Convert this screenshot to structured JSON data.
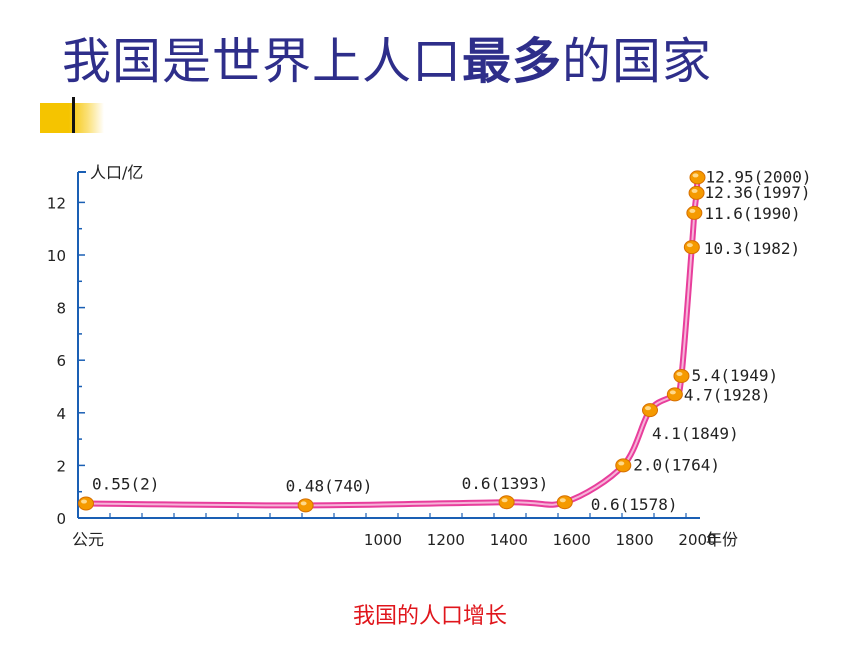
{
  "slide": {
    "title_part1": "我国是世界上人口",
    "title_part2": "最多",
    "title_part3": "的国家",
    "caption": "我国的人口增长"
  },
  "colors": {
    "title": "#2e2e8a",
    "axis": "#1a5fb4",
    "curve": "#e83e9c",
    "curve_inner": "#f6b4d8",
    "point": "#f59a00",
    "accent": "#f5c400",
    "caption": "#e0161c"
  },
  "chart_data": {
    "type": "line",
    "title": "",
    "xlabel": "年份",
    "ylabel": "人口/亿",
    "x_origin_label": "公元",
    "ylim": [
      0,
      13
    ],
    "y_ticks": [
      0,
      2,
      4,
      6,
      8,
      10,
      12
    ],
    "x_ticks": [
      1000,
      1200,
      1400,
      1600,
      1800,
      2000
    ],
    "grid": false,
    "points": [
      {
        "year": 2,
        "value": 0.55,
        "label": "0.55(2)"
      },
      {
        "year": 740,
        "value": 0.48,
        "label": "0.48(740)"
      },
      {
        "year": 1393,
        "value": 0.6,
        "label": "0.6(1393)"
      },
      {
        "year": 1578,
        "value": 0.6,
        "label": "0.6(1578)"
      },
      {
        "year": 1764,
        "value": 2.0,
        "label": "2.0(1764)"
      },
      {
        "year": 1849,
        "value": 4.1,
        "label": "4.1(1849)"
      },
      {
        "year": 1928,
        "value": 4.7,
        "label": "4.7(1928)"
      },
      {
        "year": 1949,
        "value": 5.4,
        "label": "5.4(1949)"
      },
      {
        "year": 1982,
        "value": 10.3,
        "label": "10.3(1982)"
      },
      {
        "year": 1990,
        "value": 11.6,
        "label": "11.6(1990)"
      },
      {
        "year": 1997,
        "value": 12.36,
        "label": "12.36(1997)"
      },
      {
        "year": 2000,
        "value": 12.95,
        "label": "12.95(2000)"
      }
    ]
  }
}
